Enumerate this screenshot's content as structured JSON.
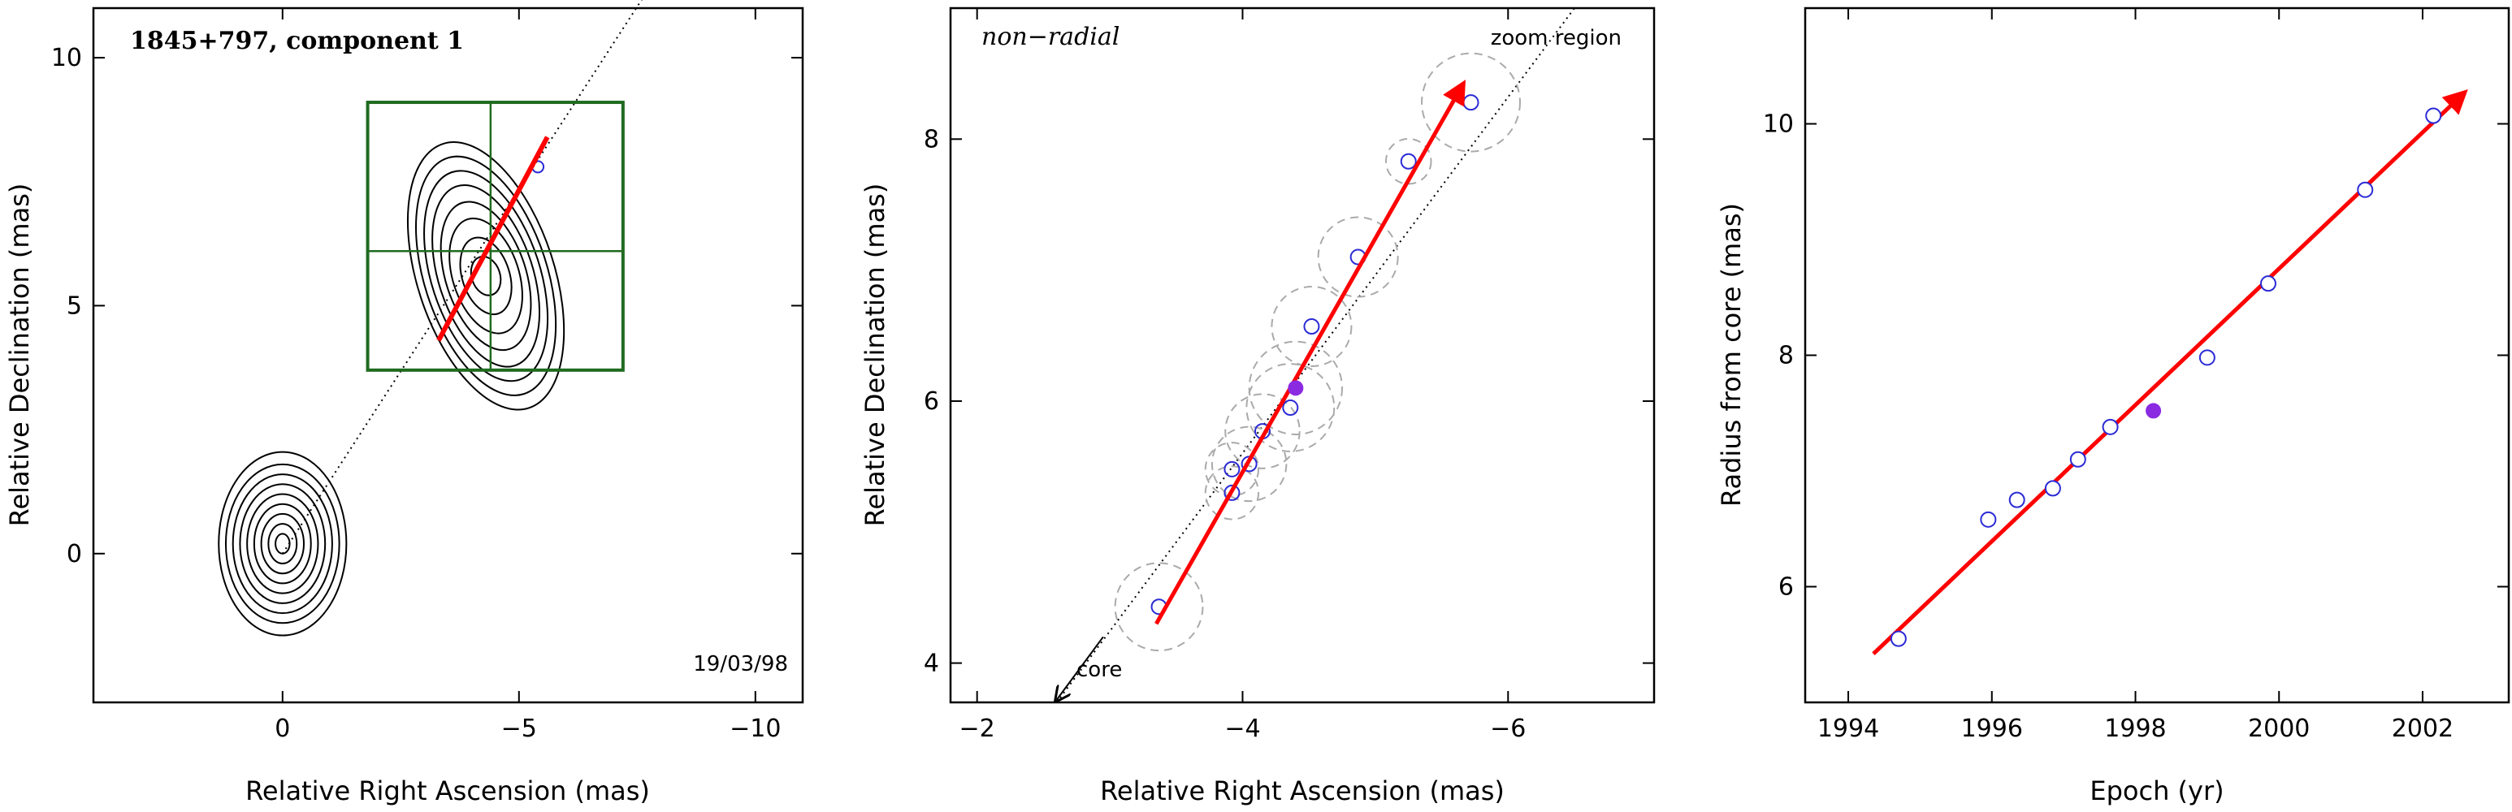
{
  "chart_data": [
    {
      "type": "contour",
      "title": "1845+797, component 1",
      "xlabel": "Relative Right Ascension (mas)",
      "ylabel": "Relative Declination (mas)",
      "xlim": [
        4,
        -11
      ],
      "ylim": [
        -3,
        11
      ],
      "xticks": [
        0,
        -5,
        -10
      ],
      "yticks": [
        0,
        5,
        10
      ],
      "date_label": "19/03/98",
      "core_contours": {
        "center": [
          0,
          0.2
        ],
        "semi_axes": [
          [
            0.15,
            0.2
          ],
          [
            0.3,
            0.4
          ],
          [
            0.45,
            0.6
          ],
          [
            0.6,
            0.8
          ],
          [
            0.75,
            1.0
          ],
          [
            0.9,
            1.2
          ],
          [
            1.05,
            1.4
          ],
          [
            1.2,
            1.6
          ],
          [
            1.35,
            1.85
          ]
        ]
      },
      "jet_contours": {
        "center": [
          -4.3,
          5.6
        ],
        "semi_axes": [
          [
            0.3,
            0.4
          ],
          [
            0.5,
            0.8
          ],
          [
            0.7,
            1.2
          ],
          [
            0.85,
            1.55
          ],
          [
            1.0,
            1.9
          ],
          [
            1.15,
            2.2
          ],
          [
            1.3,
            2.5
          ],
          [
            1.45,
            2.8
          ]
        ]
      },
      "zoom_box": {
        "x": [
          -1.8,
          -7.2
        ],
        "y": [
          3.7,
          9.1
        ],
        "cross": [
          -4.4,
          6.1
        ]
      },
      "motion_arrow": {
        "from": [
          -3.3,
          4.3
        ],
        "to": [
          -5.6,
          8.4
        ]
      },
      "dotted_line": {
        "from": [
          0,
          0
        ],
        "to": [
          -8.5,
          12.5
        ]
      },
      "points": [
        [
          -5.4,
          7.8
        ]
      ]
    },
    {
      "type": "scatter",
      "title": "non−radial",
      "annotations": [
        "zoom region",
        "core"
      ],
      "xlabel": "Relative Right Ascension (mas)",
      "ylabel": "Relative Declination (mas)",
      "xlim": [
        -1.8,
        -7.1
      ],
      "ylim": [
        3.7,
        9.0
      ],
      "xticks": [
        -2,
        -4,
        -6
      ],
      "yticks": [
        4,
        6,
        8
      ],
      "points": [
        {
          "x": -3.37,
          "y": 4.43,
          "err": 0.33
        },
        {
          "x": -3.92,
          "y": 5.3,
          "err": 0.2
        },
        {
          "x": -3.92,
          "y": 5.48,
          "err": 0.2
        },
        {
          "x": -4.05,
          "y": 5.52,
          "err": 0.28
        },
        {
          "x": -4.15,
          "y": 5.77,
          "err": 0.28
        },
        {
          "x": -4.36,
          "y": 5.95,
          "err": 0.33
        },
        {
          "x": -4.52,
          "y": 6.57,
          "err": 0.3
        },
        {
          "x": -4.87,
          "y": 7.1,
          "err": 0.3
        },
        {
          "x": -5.25,
          "y": 7.83,
          "err": 0.17
        },
        {
          "x": -5.72,
          "y": 8.28,
          "err": 0.37
        }
      ],
      "highlight_point": {
        "x": -4.4,
        "y": 6.1,
        "err": 0.35
      },
      "motion_arrow": {
        "from": [
          -3.35,
          4.3
        ],
        "to": [
          -5.65,
          8.4
        ]
      },
      "dotted_line": {
        "from": [
          -2.6,
          3.7
        ],
        "to": [
          -6.5,
          9.0
        ]
      },
      "core_arrow": {
        "from": [
          -2.95,
          4.2
        ],
        "to": [
          -2.6,
          3.72
        ]
      }
    },
    {
      "type": "scatter",
      "xlabel": "Epoch (yr)",
      "ylabel": "Radius from core (mas)",
      "xlim": [
        1993.4,
        2003.2
      ],
      "ylim": [
        5,
        11
      ],
      "xticks": [
        1994,
        1996,
        1998,
        2000,
        2002
      ],
      "yticks": [
        6,
        8,
        10
      ],
      "points": [
        {
          "x": 1994.7,
          "y": 5.55
        },
        {
          "x": 1995.95,
          "y": 6.58
        },
        {
          "x": 1996.35,
          "y": 6.75
        },
        {
          "x": 1996.85,
          "y": 6.85
        },
        {
          "x": 1997.2,
          "y": 7.1
        },
        {
          "x": 1997.65,
          "y": 7.38
        },
        {
          "x": 1999.0,
          "y": 7.98
        },
        {
          "x": 1999.85,
          "y": 8.62
        },
        {
          "x": 2001.2,
          "y": 9.43
        },
        {
          "x": 2002.15,
          "y": 10.07
        }
      ],
      "highlight_point": {
        "x": 1998.25,
        "y": 7.52
      },
      "fit_line": {
        "from": [
          1994.35,
          5.42
        ],
        "to": [
          2002.55,
          10.25
        ]
      }
    }
  ]
}
